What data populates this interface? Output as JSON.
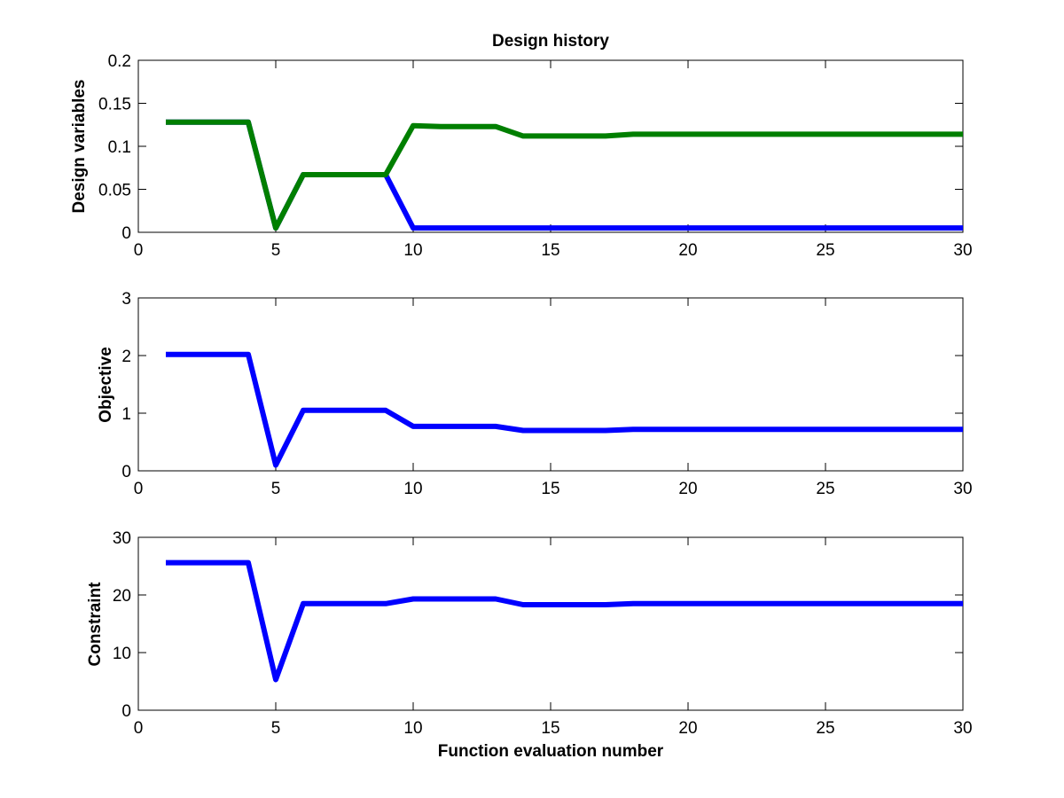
{
  "chart_data": [
    {
      "type": "line",
      "title": "Design history",
      "xlabel": "",
      "ylabel": "Design variables",
      "xlim": [
        0,
        30
      ],
      "ylim": [
        0,
        0.2
      ],
      "xticks": [
        0,
        5,
        10,
        15,
        20,
        25,
        30
      ],
      "yticks": [
        0,
        0.05,
        0.1,
        0.15,
        0.2
      ],
      "xtick_labels": [
        "0",
        "5",
        "10",
        "15",
        "20",
        "25",
        "30"
      ],
      "ytick_labels": [
        "0",
        "0.05",
        "0.1",
        "0.15",
        "0.2"
      ],
      "x": [
        1,
        2,
        3,
        4,
        5,
        6,
        7,
        8,
        9,
        10,
        11,
        12,
        13,
        14,
        15,
        16,
        17,
        18,
        19,
        20,
        21,
        22,
        23,
        24,
        25,
        26,
        27,
        28,
        29,
        30
      ],
      "series": [
        {
          "color": "#0000ff",
          "values": [
            0.128,
            0.128,
            0.128,
            0.128,
            0.005,
            0.067,
            0.067,
            0.067,
            0.067,
            0.005,
            0.005,
            0.005,
            0.005,
            0.005,
            0.005,
            0.005,
            0.005,
            0.005,
            0.005,
            0.005,
            0.005,
            0.005,
            0.005,
            0.005,
            0.005,
            0.005,
            0.005,
            0.005,
            0.005,
            0.005
          ]
        },
        {
          "color": "#007f00",
          "values": [
            0.128,
            0.128,
            0.128,
            0.128,
            0.005,
            0.067,
            0.067,
            0.067,
            0.067,
            0.124,
            0.123,
            0.123,
            0.123,
            0.112,
            0.112,
            0.112,
            0.112,
            0.114,
            0.114,
            0.114,
            0.114,
            0.114,
            0.114,
            0.114,
            0.114,
            0.114,
            0.114,
            0.114,
            0.114,
            0.114
          ]
        }
      ]
    },
    {
      "type": "line",
      "title": "",
      "xlabel": "",
      "ylabel": "Objective",
      "xlim": [
        0,
        30
      ],
      "ylim": [
        0,
        3
      ],
      "xticks": [
        0,
        5,
        10,
        15,
        20,
        25,
        30
      ],
      "yticks": [
        0,
        1,
        2,
        3
      ],
      "xtick_labels": [
        "0",
        "5",
        "10",
        "15",
        "20",
        "25",
        "30"
      ],
      "ytick_labels": [
        "0",
        "1",
        "2",
        "3"
      ],
      "x": [
        1,
        2,
        3,
        4,
        5,
        6,
        7,
        8,
        9,
        10,
        11,
        12,
        13,
        14,
        15,
        16,
        17,
        18,
        19,
        20,
        21,
        22,
        23,
        24,
        25,
        26,
        27,
        28,
        29,
        30
      ],
      "series": [
        {
          "color": "#0000ff",
          "values": [
            2.02,
            2.02,
            2.02,
            2.02,
            0.1,
            1.05,
            1.05,
            1.05,
            1.05,
            0.77,
            0.77,
            0.77,
            0.77,
            0.7,
            0.7,
            0.7,
            0.7,
            0.72,
            0.72,
            0.72,
            0.72,
            0.72,
            0.72,
            0.72,
            0.72,
            0.72,
            0.72,
            0.72,
            0.72,
            0.72
          ]
        }
      ]
    },
    {
      "type": "line",
      "title": "",
      "xlabel": "Function evaluation number",
      "ylabel": "Constraint",
      "xlim": [
        0,
        30
      ],
      "ylim": [
        0,
        30
      ],
      "xticks": [
        0,
        5,
        10,
        15,
        20,
        25,
        30
      ],
      "yticks": [
        0,
        10,
        20,
        30
      ],
      "xtick_labels": [
        "0",
        "5",
        "10",
        "15",
        "20",
        "25",
        "30"
      ],
      "ytick_labels": [
        "0",
        "10",
        "20",
        "30"
      ],
      "x": [
        1,
        2,
        3,
        4,
        5,
        6,
        7,
        8,
        9,
        10,
        11,
        12,
        13,
        14,
        15,
        16,
        17,
        18,
        19,
        20,
        21,
        22,
        23,
        24,
        25,
        26,
        27,
        28,
        29,
        30
      ],
      "series": [
        {
          "color": "#0000ff",
          "values": [
            25.6,
            25.6,
            25.6,
            25.6,
            5.3,
            18.5,
            18.5,
            18.5,
            18.5,
            19.3,
            19.3,
            19.3,
            19.3,
            18.3,
            18.3,
            18.3,
            18.3,
            18.5,
            18.5,
            18.5,
            18.5,
            18.5,
            18.5,
            18.5,
            18.5,
            18.5,
            18.5,
            18.5,
            18.5,
            18.5
          ]
        }
      ]
    }
  ]
}
